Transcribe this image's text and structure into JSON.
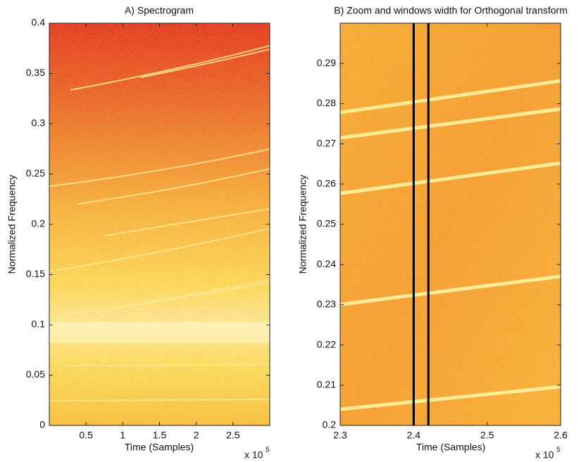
{
  "chart_data": [
    {
      "type": "spectrogram",
      "title": "A) Spectrogram",
      "x_label": "Time (Samples)",
      "y_label": "Normalized Frequency",
      "x_multiplier": "x 10",
      "x_multiplier_exponent": "5",
      "xlim": [
        0,
        3
      ],
      "xticks": [
        0.5,
        1,
        1.5,
        2,
        2.5
      ],
      "ylim": [
        0,
        0.4
      ],
      "yticks": [
        0,
        0.05,
        0.1,
        0.15,
        0.2,
        0.25,
        0.3,
        0.35,
        0.4
      ]
    },
    {
      "type": "spectrogram",
      "title": "B) Zoom and windows width for Orthogonal transform",
      "x_label": "Time (Samples)",
      "y_label": "Normalized Frequency",
      "x_multiplier": "x 10",
      "x_multiplier_exponent": "5",
      "xlim": [
        2.3,
        2.6
      ],
      "xticks": [
        2.3,
        2.4,
        2.5,
        2.6
      ],
      "ylim": [
        0.2,
        0.3
      ],
      "yticks": [
        0.2,
        0.21,
        0.22,
        0.23,
        0.24,
        0.25,
        0.26,
        0.27,
        0.28,
        0.29
      ],
      "vlines": [
        2.4,
        2.42
      ],
      "vline_color": "#000000"
    }
  ]
}
